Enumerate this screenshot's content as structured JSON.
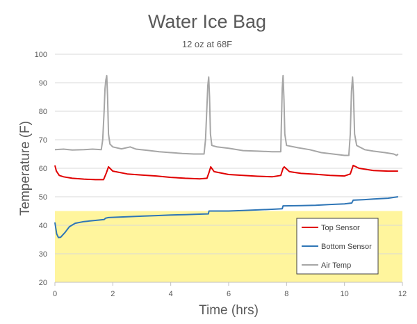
{
  "chart_data": {
    "type": "line",
    "title": "Water Ice Bag",
    "subtitle": "12 oz at 68F",
    "xlabel": "Time (hrs)",
    "ylabel": "Temperature (F)",
    "xlim": [
      0,
      12
    ],
    "ylim": [
      20,
      100
    ],
    "x_ticks": [
      "0",
      "2",
      "4",
      "6",
      "8",
      "10",
      "12"
    ],
    "y_ticks": [
      "20",
      "30",
      "40",
      "50",
      "60",
      "70",
      "80",
      "90",
      "100"
    ],
    "grid": true,
    "legend_position": "bottom-right",
    "band": {
      "from": 20,
      "to": 45,
      "color": "#fff59d"
    },
    "series": [
      {
        "name": "Top Sensor",
        "color": "#e00000",
        "points": [
          [
            0,
            61
          ],
          [
            0.05,
            59
          ],
          [
            0.15,
            57.5
          ],
          [
            0.3,
            57
          ],
          [
            0.6,
            56.5
          ],
          [
            1.0,
            56.2
          ],
          [
            1.4,
            56
          ],
          [
            1.68,
            56
          ],
          [
            1.78,
            58.5
          ],
          [
            1.85,
            60.5
          ],
          [
            2.0,
            59
          ],
          [
            2.5,
            58
          ],
          [
            3.0,
            57.6
          ],
          [
            3.5,
            57.3
          ],
          [
            4.0,
            56.8
          ],
          [
            4.5,
            56.5
          ],
          [
            5.0,
            56.3
          ],
          [
            5.25,
            56.5
          ],
          [
            5.32,
            58.5
          ],
          [
            5.38,
            60.5
          ],
          [
            5.5,
            58.8
          ],
          [
            6.0,
            57.8
          ],
          [
            6.5,
            57.5
          ],
          [
            7.0,
            57.2
          ],
          [
            7.5,
            57
          ],
          [
            7.8,
            57.5
          ],
          [
            7.88,
            60
          ],
          [
            7.92,
            60.5
          ],
          [
            8.1,
            58.8
          ],
          [
            8.5,
            58.2
          ],
          [
            9.0,
            57.9
          ],
          [
            9.5,
            57.5
          ],
          [
            10.0,
            57.3
          ],
          [
            10.2,
            58
          ],
          [
            10.3,
            61
          ],
          [
            10.5,
            60
          ],
          [
            11.0,
            59.2
          ],
          [
            11.5,
            59
          ],
          [
            11.85,
            59
          ]
        ]
      },
      {
        "name": "Bottom Sensor",
        "color": "#2e75b6",
        "points": [
          [
            0,
            41
          ],
          [
            0.06,
            37
          ],
          [
            0.12,
            35.7
          ],
          [
            0.2,
            35.8
          ],
          [
            0.35,
            37.5
          ],
          [
            0.5,
            39.5
          ],
          [
            0.7,
            40.7
          ],
          [
            1.0,
            41.3
          ],
          [
            1.4,
            41.7
          ],
          [
            1.7,
            42
          ],
          [
            1.75,
            42.5
          ],
          [
            1.85,
            42.7
          ],
          [
            2.5,
            43
          ],
          [
            3.0,
            43.2
          ],
          [
            3.5,
            43.4
          ],
          [
            4.0,
            43.6
          ],
          [
            4.5,
            43.7
          ],
          [
            5.0,
            43.9
          ],
          [
            5.3,
            44
          ],
          [
            5.32,
            45
          ],
          [
            5.5,
            45
          ],
          [
            6.0,
            45
          ],
          [
            6.5,
            45.2
          ],
          [
            7.0,
            45.4
          ],
          [
            7.5,
            45.6
          ],
          [
            7.85,
            45.8
          ],
          [
            7.88,
            46.8
          ],
          [
            8.5,
            46.9
          ],
          [
            9.0,
            47
          ],
          [
            9.5,
            47.3
          ],
          [
            10.0,
            47.5
          ],
          [
            10.25,
            47.8
          ],
          [
            10.3,
            48.8
          ],
          [
            10.7,
            49
          ],
          [
            11.0,
            49.2
          ],
          [
            11.5,
            49.5
          ],
          [
            11.85,
            50
          ]
        ]
      },
      {
        "name": "Air Temp",
        "color": "#a6a6a6",
        "points": [
          [
            0,
            66.5
          ],
          [
            0.3,
            66.7
          ],
          [
            0.6,
            66.4
          ],
          [
            1.0,
            66.5
          ],
          [
            1.3,
            66.7
          ],
          [
            1.6,
            66.5
          ],
          [
            1.65,
            70
          ],
          [
            1.7,
            80
          ],
          [
            1.73,
            88
          ],
          [
            1.76,
            91
          ],
          [
            1.79,
            92.5
          ],
          [
            1.82,
            85
          ],
          [
            1.85,
            72
          ],
          [
            1.9,
            68.5
          ],
          [
            2.0,
            67.5
          ],
          [
            2.3,
            66.8
          ],
          [
            2.6,
            67.5
          ],
          [
            2.8,
            66.7
          ],
          [
            3.2,
            66.3
          ],
          [
            3.6,
            65.8
          ],
          [
            4.0,
            65.5
          ],
          [
            4.4,
            65.2
          ],
          [
            4.8,
            65
          ],
          [
            5.15,
            65
          ],
          [
            5.2,
            70
          ],
          [
            5.25,
            82
          ],
          [
            5.28,
            89
          ],
          [
            5.31,
            92
          ],
          [
            5.34,
            85
          ],
          [
            5.37,
            72
          ],
          [
            5.42,
            68
          ],
          [
            5.6,
            67.5
          ],
          [
            6.0,
            67
          ],
          [
            6.5,
            66.2
          ],
          [
            7.0,
            66
          ],
          [
            7.5,
            65.8
          ],
          [
            7.8,
            65.8
          ],
          [
            7.82,
            75
          ],
          [
            7.85,
            88
          ],
          [
            7.88,
            92.5
          ],
          [
            7.91,
            84
          ],
          [
            7.94,
            72
          ],
          [
            8.0,
            68
          ],
          [
            8.4,
            67.2
          ],
          [
            8.8,
            66.5
          ],
          [
            9.2,
            65.5
          ],
          [
            9.6,
            65
          ],
          [
            10.0,
            64.5
          ],
          [
            10.15,
            64.5
          ],
          [
            10.2,
            72
          ],
          [
            10.24,
            87
          ],
          [
            10.28,
            92
          ],
          [
            10.31,
            86
          ],
          [
            10.35,
            72
          ],
          [
            10.42,
            68
          ],
          [
            10.7,
            66.5
          ],
          [
            11.0,
            66
          ],
          [
            11.4,
            65.5
          ],
          [
            11.7,
            65
          ],
          [
            11.8,
            64.5
          ],
          [
            11.85,
            65
          ]
        ]
      }
    ]
  }
}
